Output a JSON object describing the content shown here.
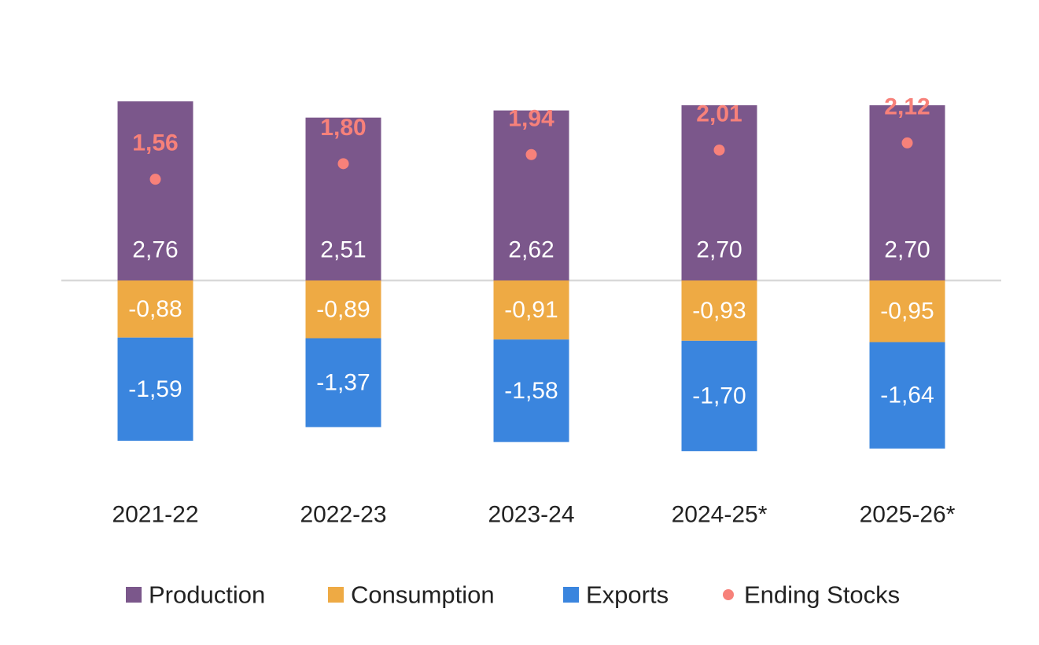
{
  "chart_data": {
    "type": "bar",
    "stacked": true,
    "categories": [
      "2021-22",
      "2022-23",
      "2023-24",
      "2024-25*",
      "2025-26*"
    ],
    "series": [
      {
        "name": "Production",
        "color": "#7b578b",
        "values": [
          2.76,
          2.51,
          2.62,
          2.7,
          2.7
        ],
        "labels": [
          "2,76",
          "2,51",
          "2,62",
          "2,70",
          "2,70"
        ]
      },
      {
        "name": "Consumption",
        "color": "#eeaa44",
        "values": [
          -0.88,
          -0.89,
          -0.91,
          -0.93,
          -0.95
        ],
        "labels": [
          "-0,88",
          "-0,89",
          "-0,91",
          "-0,93",
          "-0,95"
        ]
      },
      {
        "name": "Exports",
        "color": "#3a85de",
        "values": [
          -1.59,
          -1.37,
          -1.58,
          -1.7,
          -1.64
        ],
        "labels": [
          "-1,59",
          "-1,37",
          "-1,58",
          "-1,70",
          "-1,64"
        ]
      }
    ],
    "markers": {
      "name": "Ending Stocks",
      "type": "scatter",
      "color": "#f7817a",
      "values": [
        1.56,
        1.8,
        1.94,
        2.01,
        2.12
      ],
      "labels": [
        "1,56",
        "1,80",
        "1,94",
        "2,01",
        "2,12"
      ]
    },
    "title": "",
    "xlabel": "",
    "ylabel": "",
    "ylim": [
      -2.5,
      3.5
    ],
    "grid": false,
    "legend_position": "bottom"
  }
}
